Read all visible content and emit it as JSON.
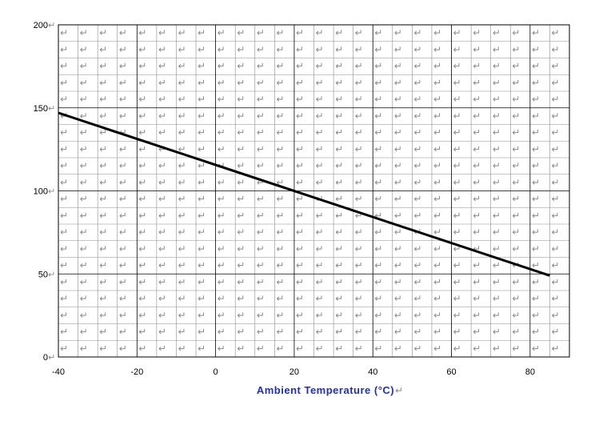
{
  "chart_data": {
    "type": "line",
    "title": "",
    "xlabel": "Ambient Temperature (°C)",
    "ylabel": "",
    "xlim": [
      -40,
      90
    ],
    "ylim": [
      0,
      200
    ],
    "x_ticks": [
      -40,
      -20,
      0,
      20,
      40,
      60,
      80
    ],
    "y_ticks": [
      0,
      50,
      100,
      150,
      200
    ],
    "x_tick_labels": [
      "-40",
      "-20",
      "0",
      "20",
      "40",
      "60",
      "80"
    ],
    "y_tick_labels": [
      "0",
      "50",
      "100",
      "150",
      "200"
    ],
    "grid": true,
    "series": [
      {
        "x": [
          -40,
          85
        ],
        "y": [
          147,
          49
        ]
      }
    ]
  },
  "colors": {
    "line": "#000000",
    "major_grid": "#000000",
    "minor_grid": "#8c8c8c",
    "cell_glyph": "#8c8c8c",
    "xlabel": "#1f2fbf",
    "paragraph_mark": "#8c8c8c"
  },
  "glyphs": {
    "paragraph_mark": "↵"
  }
}
